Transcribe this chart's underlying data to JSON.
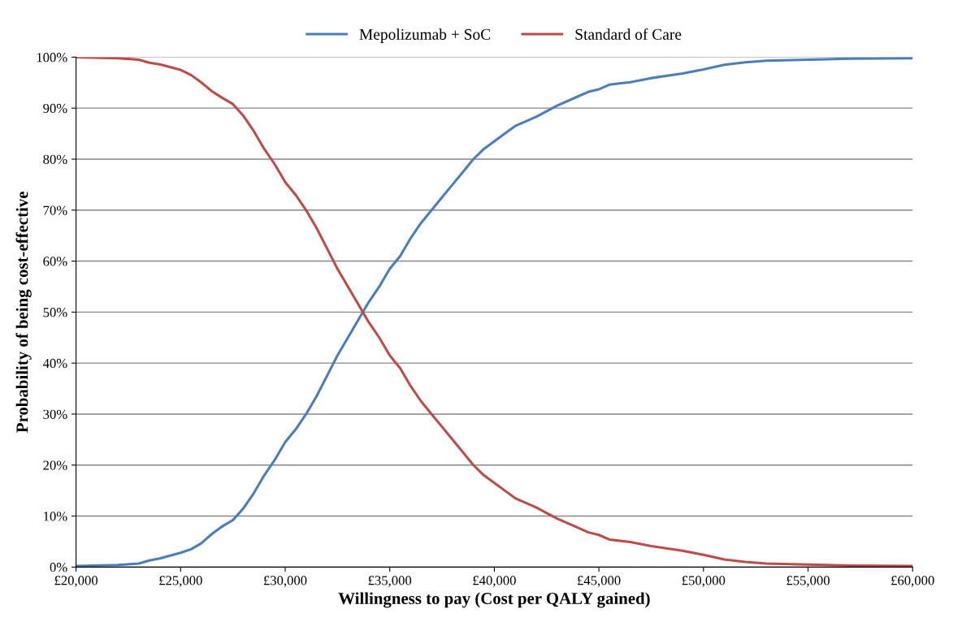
{
  "chart_data": {
    "type": "line",
    "xlabel": "Willingness to pay (Cost per QALY gained)",
    "ylabel": "Probability of being cost-effective",
    "x": [
      20000,
      22000,
      23000,
      23500,
      24000,
      25000,
      25500,
      26000,
      26500,
      27000,
      27500,
      28000,
      28500,
      29000,
      29500,
      30000,
      30500,
      31000,
      31500,
      32000,
      32500,
      33000,
      33500,
      34000,
      34500,
      35000,
      35500,
      36000,
      36500,
      37000,
      37500,
      38000,
      38500,
      39000,
      39500,
      40000,
      40500,
      41000,
      42000,
      43000,
      44000,
      44500,
      45000,
      45500,
      46500,
      47500,
      49000,
      50000,
      51000,
      52000,
      53000,
      55000,
      57000,
      60000
    ],
    "series": [
      {
        "name": "Mepolizumab + SoC",
        "color": "#4a7ebb",
        "values": [
          0.2,
          0.4,
          0.7,
          1.3,
          1.7,
          2.8,
          3.5,
          4.7,
          6.5,
          8,
          9.2,
          11.5,
          14.5,
          18,
          21,
          24.5,
          27,
          30,
          33.5,
          37.5,
          41.5,
          45,
          48.5,
          52,
          55,
          58.5,
          61,
          64.5,
          67.5,
          70,
          72.5,
          75,
          77.5,
          80,
          82,
          83.5,
          85,
          86.5,
          88.3,
          90.5,
          92.3,
          93.2,
          93.7,
          94.6,
          95.1,
          95.9,
          96.8,
          97.6,
          98.5,
          99,
          99.3,
          99.5,
          99.7,
          99.8
        ]
      },
      {
        "name": "Standard of Care",
        "color": "#be4b48",
        "values": [
          100,
          99.8,
          99.5,
          98.9,
          98.6,
          97.5,
          96.5,
          95,
          93.3,
          92,
          90.8,
          88.5,
          85.5,
          82,
          79,
          75.5,
          73,
          70,
          66.5,
          62.5,
          58.5,
          55,
          51.5,
          48,
          45,
          41.5,
          39,
          35.5,
          32.5,
          30,
          27.5,
          25,
          22.5,
          20,
          18,
          16.5,
          15,
          13.5,
          11.7,
          9.5,
          7.7,
          6.8,
          6.3,
          5.4,
          4.9,
          4.1,
          3.2,
          2.4,
          1.5,
          1,
          0.7,
          0.5,
          0.3,
          0.2
        ]
      }
    ],
    "xlim": [
      20000,
      60000
    ],
    "xticks": [
      {
        "value": 20000,
        "label": "£20,000"
      },
      {
        "value": 25000,
        "label": "£25,000"
      },
      {
        "value": 30000,
        "label": "£30,000"
      },
      {
        "value": 35000,
        "label": "£35,000"
      },
      {
        "value": 40000,
        "label": "£40,000"
      },
      {
        "value": 45000,
        "label": "£45,000"
      },
      {
        "value": 50000,
        "label": "£50,000"
      },
      {
        "value": 55000,
        "label": "£55,000"
      },
      {
        "value": 60000,
        "label": "£60,000"
      }
    ],
    "ylim": [
      0,
      100
    ],
    "yticks": [
      {
        "value": 0,
        "label": "0%"
      },
      {
        "value": 10,
        "label": "10%"
      },
      {
        "value": 20,
        "label": "20%"
      },
      {
        "value": 30,
        "label": "30%"
      },
      {
        "value": 40,
        "label": "40%"
      },
      {
        "value": 50,
        "label": "50%"
      },
      {
        "value": 60,
        "label": "60%"
      },
      {
        "value": 70,
        "label": "70%"
      },
      {
        "value": 80,
        "label": "80%"
      },
      {
        "value": 90,
        "label": "90%"
      },
      {
        "value": 100,
        "label": "100%"
      }
    ],
    "grid": "y",
    "legend": "top",
    "marker": "none",
    "line_style": "solid"
  }
}
